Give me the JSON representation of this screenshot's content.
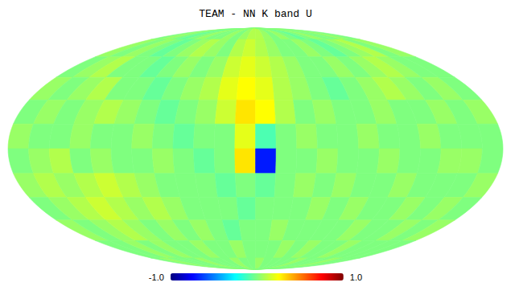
{
  "chart_data": {
    "type": "heatmap",
    "title": "TEAM - NN K band U",
    "tick_labels": false,
    "lon_bins": [
      180,
      165,
      150,
      135,
      120,
      105,
      90,
      75,
      60,
      45,
      30,
      15,
      0,
      -15,
      -30,
      -45,
      -60,
      -75,
      -90,
      -105,
      -120,
      -135,
      -150,
      -165,
      -180
    ],
    "lat_bins": [
      90,
      75,
      60,
      45,
      30,
      15,
      0,
      -15,
      -30,
      -45,
      -60,
      -75,
      -90
    ],
    "cells": [
      [
        0.0,
        0.05,
        0.0,
        -0.05,
        0.0,
        0.05,
        0.0,
        0.0,
        0.05,
        0.0,
        0.05,
        0.1,
        0.1,
        0.05,
        0.0,
        0.05,
        0.0,
        -0.05,
        0.0,
        0.05,
        0.0,
        0.0,
        0.05,
        0.0
      ],
      [
        0.05,
        0.0,
        0.05,
        0.0,
        -0.05,
        0.0,
        0.05,
        0.1,
        0.05,
        0.0,
        0.1,
        0.15,
        0.1,
        0.05,
        0.0,
        0.0,
        0.05,
        0.0,
        -0.05,
        0.0,
        0.05,
        0.1,
        0.0,
        0.05
      ],
      [
        0.0,
        0.05,
        0.1,
        0.0,
        0.0,
        -0.05,
        0.0,
        0.05,
        0.0,
        0.05,
        0.15,
        0.2,
        0.15,
        0.1,
        0.05,
        0.0,
        0.0,
        0.05,
        0.0,
        0.05,
        0.1,
        0.05,
        0.0,
        0.0
      ],
      [
        0.05,
        0.0,
        0.05,
        0.1,
        0.0,
        0.0,
        -0.05,
        0.0,
        0.05,
        0.1,
        0.2,
        0.25,
        0.2,
        0.1,
        0.05,
        0.0,
        -0.05,
        0.0,
        0.05,
        0.1,
        0.05,
        0.0,
        0.05,
        0.0
      ],
      [
        0.0,
        0.05,
        0.0,
        0.05,
        0.1,
        0.05,
        0.0,
        -0.05,
        0.0,
        0.05,
        0.15,
        0.3,
        0.25,
        0.1,
        0.0,
        0.05,
        0.0,
        0.0,
        0.05,
        0.0,
        0.0,
        0.05,
        0.0,
        0.05
      ],
      [
        0.05,
        0.0,
        0.0,
        0.05,
        0.0,
        0.0,
        0.05,
        0.0,
        -0.05,
        0.0,
        0.0,
        0.2,
        -0.1,
        0.0,
        0.05,
        0.0,
        0.0,
        0.05,
        0.0,
        0.0,
        0.05,
        0.0,
        0.0,
        0.0
      ],
      [
        0.0,
        0.05,
        0.1,
        0.0,
        0.05,
        0.0,
        0.0,
        0.05,
        0.0,
        -0.05,
        0.0,
        0.3,
        -0.7,
        0.0,
        0.0,
        0.05,
        0.0,
        0.0,
        0.05,
        0.0,
        0.0,
        0.05,
        0.05,
        0.0
      ],
      [
        0.05,
        0.1,
        0.05,
        0.1,
        0.15,
        0.1,
        0.05,
        0.0,
        0.0,
        0.0,
        -0.05,
        0.0,
        -0.05,
        0.0,
        0.05,
        0.0,
        0.05,
        0.0,
        0.0,
        0.05,
        0.0,
        0.0,
        0.0,
        0.05
      ],
      [
        0.0,
        0.05,
        0.1,
        0.15,
        0.1,
        0.05,
        0.1,
        0.05,
        0.0,
        0.0,
        0.0,
        -0.05,
        0.0,
        0.0,
        0.0,
        0.05,
        0.0,
        0.05,
        0.0,
        0.0,
        0.05,
        0.0,
        0.05,
        0.0
      ],
      [
        0.05,
        0.0,
        0.05,
        0.1,
        0.05,
        0.0,
        0.05,
        0.0,
        0.05,
        0.0,
        -0.05,
        0.0,
        0.0,
        0.05,
        0.0,
        0.0,
        0.0,
        0.0,
        0.05,
        0.0,
        0.0,
        0.05,
        0.0,
        0.05
      ],
      [
        0.0,
        0.0,
        0.05,
        0.0,
        0.05,
        0.0,
        0.0,
        0.05,
        0.0,
        0.0,
        0.05,
        0.0,
        0.0,
        0.0,
        0.05,
        0.0,
        0.05,
        0.0,
        0.0,
        0.05,
        0.0,
        0.0,
        0.0,
        0.0
      ],
      [
        0.0,
        0.05,
        0.0,
        0.0,
        0.0,
        0.05,
        0.0,
        0.0,
        0.0,
        0.05,
        0.0,
        0.0,
        0.05,
        0.0,
        0.0,
        0.0,
        0.0,
        0.05,
        0.0,
        0.0,
        0.0,
        0.05,
        0.0,
        0.0
      ]
    ],
    "colorbar": {
      "range": [
        -1,
        1
      ],
      "ticks": [
        {
          "value": -1,
          "label": "-1.0"
        },
        {
          "value": 1,
          "label": "1.0"
        }
      ]
    }
  }
}
